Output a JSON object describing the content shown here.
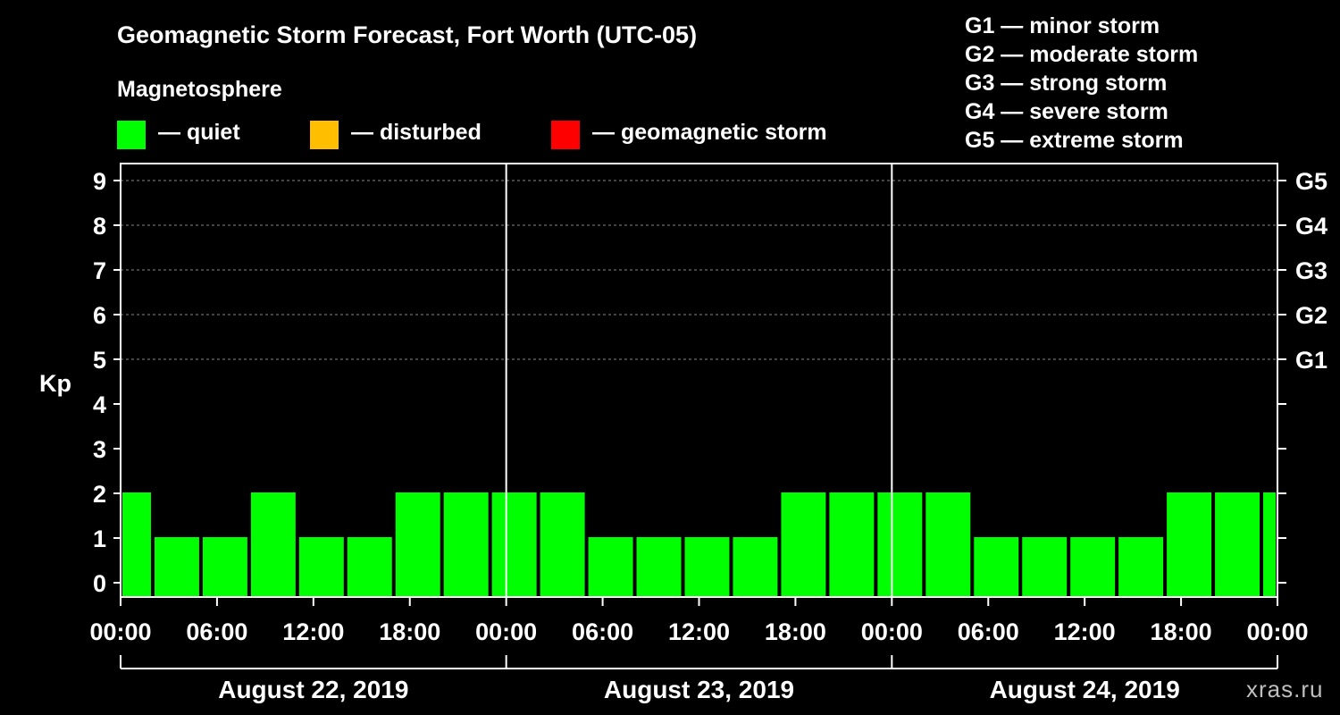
{
  "title": "Geomagnetic Storm Forecast, Fort Worth (UTC-05)",
  "magnetosphere_label": "Magnetosphere",
  "legend": [
    {
      "label": "— quiet",
      "color": "#00ff00"
    },
    {
      "label": "— disturbed",
      "color": "#ffbf00"
    },
    {
      "label": "— geomagnetic storm",
      "color": "#ff0000"
    }
  ],
  "storm_scale": [
    "G1 — minor storm",
    "G2 — moderate storm",
    "G3 — strong storm",
    "G4 — severe storm",
    "G5 — extreme storm"
  ],
  "watermark": "xras.ru",
  "chart_data": {
    "type": "bar",
    "title": "Geomagnetic Storm Forecast, Fort Worth (UTC-05)",
    "ylabel": "Kp",
    "ylim": [
      0,
      9
    ],
    "yticks": [
      0,
      1,
      2,
      3,
      4,
      5,
      6,
      7,
      8,
      9
    ],
    "right_axis": [
      {
        "kp": 5,
        "label": "G1"
      },
      {
        "kp": 6,
        "label": "G2"
      },
      {
        "kp": 7,
        "label": "G3"
      },
      {
        "kp": 8,
        "label": "G4"
      },
      {
        "kp": 9,
        "label": "G5"
      }
    ],
    "x_range_hours": [
      0,
      72
    ],
    "first_bar_start_hour": -1,
    "bar_interval_hours": 3,
    "values": [
      2,
      1,
      1,
      2,
      1,
      1,
      2,
      2,
      2,
      2,
      1,
      1,
      1,
      1,
      2,
      2,
      2,
      2,
      1,
      1,
      1,
      1,
      2,
      2,
      2
    ],
    "bar_color": "#00ff00",
    "xtick_labels": [
      "00:00",
      "06:00",
      "12:00",
      "18:00",
      "00:00",
      "06:00",
      "12:00",
      "18:00",
      "00:00",
      "06:00",
      "12:00",
      "18:00",
      "00:00"
    ],
    "days": [
      "August 22, 2019",
      "August 23, 2019",
      "August 24, 2019"
    ],
    "grid": "dashed at Kp 5-9"
  }
}
